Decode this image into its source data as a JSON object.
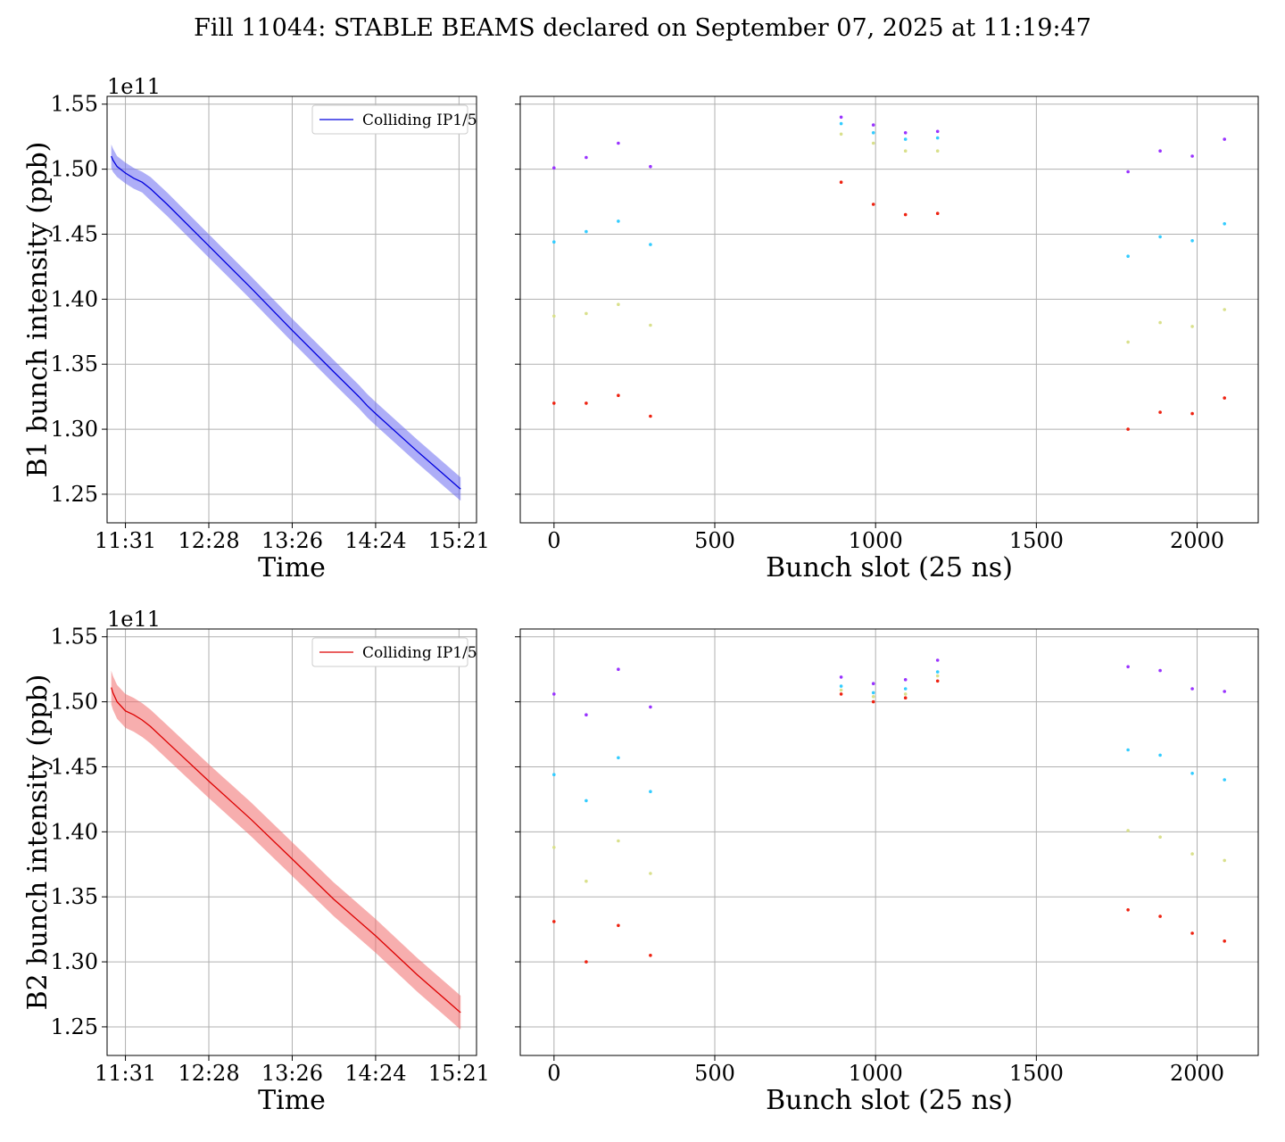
{
  "figure": {
    "title": "Fill 11044: STABLE BEAMS declared on September 07, 2025 at 11:19:47"
  },
  "chart_data": [
    {
      "id": "b1_time",
      "type": "line",
      "title": "",
      "xlabel": "Time",
      "ylabel": "B1 bunch intensity (ppb)",
      "y_offset_label": "1e11",
      "y_scale": 100000000000.0,
      "xticks": [
        "11:31",
        "12:28",
        "13:26",
        "14:24",
        "15:21"
      ],
      "xlim": [
        -0.22,
        4.21
      ],
      "ylim": [
        1.228,
        1.556
      ],
      "yticks": [
        1.25,
        1.3,
        1.35,
        1.4,
        1.45,
        1.5,
        1.55
      ],
      "grid": true,
      "legend": {
        "position": "upper right",
        "entries": [
          "Colliding IP1/5"
        ]
      },
      "line_color": "#0000dd",
      "band_color": "#6b6bf0",
      "series": [
        {
          "name": "Colliding IP1/5",
          "x": [
            -0.17,
            -0.15,
            -0.1,
            0.0,
            0.1,
            0.2,
            0.3,
            0.5,
            1.0,
            1.5,
            2.0,
            2.5,
            2.8,
            2.9,
            3.0,
            3.5,
            4.0,
            4.02
          ],
          "y": [
            1.51,
            1.507,
            1.502,
            1.497,
            1.493,
            1.49,
            1.485,
            1.473,
            1.441,
            1.409,
            1.376,
            1.344,
            1.325,
            1.318,
            1.312,
            1.283,
            1.255,
            1.254
          ],
          "band_upper": [
            1.519,
            1.516,
            1.51,
            1.505,
            1.501,
            1.498,
            1.494,
            1.482,
            1.45,
            1.418,
            1.385,
            1.353,
            1.334,
            1.327,
            1.321,
            1.292,
            1.264,
            1.263
          ],
          "band_lower": [
            1.501,
            1.498,
            1.494,
            1.489,
            1.485,
            1.482,
            1.476,
            1.464,
            1.432,
            1.4,
            1.367,
            1.335,
            1.316,
            1.309,
            1.303,
            1.274,
            1.246,
            1.245
          ]
        }
      ]
    },
    {
      "id": "b1_slot",
      "type": "scatter",
      "title": "",
      "xlabel": "Bunch slot (25 ns)",
      "ylabel": "",
      "xticks": [
        0,
        500,
        1000,
        1500,
        2000
      ],
      "xlim": [
        -105,
        2190
      ],
      "ylim": [
        1.228,
        1.556
      ],
      "grid": true,
      "colors": [
        "#9933ff",
        "#33ccff",
        "#d9e08c",
        "#ee2211"
      ],
      "series": [
        {
          "color_index": 0,
          "x": [
            0,
            100,
            200,
            300,
            893,
            993,
            1093,
            1193,
            1785,
            1885,
            1985,
            2085
          ],
          "y": [
            1.501,
            1.509,
            1.52,
            1.502,
            1.54,
            1.534,
            1.528,
            1.529,
            1.498,
            1.514,
            1.51,
            1.523
          ]
        },
        {
          "color_index": 1,
          "x": [
            0,
            100,
            200,
            300,
            893,
            993,
            1093,
            1193,
            1785,
            1885,
            1985,
            2085
          ],
          "y": [
            1.444,
            1.452,
            1.46,
            1.442,
            1.535,
            1.528,
            1.523,
            1.524,
            1.433,
            1.448,
            1.445,
            1.458
          ]
        },
        {
          "color_index": 2,
          "x": [
            0,
            100,
            200,
            300,
            893,
            993,
            1093,
            1193,
            1785,
            1885,
            1985,
            2085
          ],
          "y": [
            1.387,
            1.389,
            1.396,
            1.38,
            1.527,
            1.52,
            1.514,
            1.514,
            1.367,
            1.382,
            1.379,
            1.392
          ]
        },
        {
          "color_index": 3,
          "x": [
            0,
            100,
            200,
            300,
            893,
            993,
            1093,
            1193,
            1785,
            1885,
            1985,
            2085
          ],
          "y": [
            1.32,
            1.32,
            1.326,
            1.31,
            1.49,
            1.473,
            1.465,
            1.466,
            1.3,
            1.313,
            1.312,
            1.324
          ]
        }
      ]
    },
    {
      "id": "b2_time",
      "type": "line",
      "title": "",
      "xlabel": "Time",
      "ylabel": "B2 bunch intensity (ppb)",
      "y_offset_label": "1e11",
      "y_scale": 100000000000.0,
      "xticks": [
        "11:31",
        "12:28",
        "13:26",
        "14:24",
        "15:21"
      ],
      "xlim": [
        -0.22,
        4.21
      ],
      "ylim": [
        1.228,
        1.556
      ],
      "yticks": [
        1.25,
        1.3,
        1.35,
        1.4,
        1.45,
        1.5,
        1.55
      ],
      "grid": true,
      "legend": {
        "position": "upper right",
        "entries": [
          "Colliding IP1/5"
        ]
      },
      "line_color": "#dd0000",
      "band_color": "#f06b6b",
      "series": [
        {
          "name": "Colliding IP1/5",
          "x": [
            -0.17,
            -0.15,
            -0.1,
            0.0,
            0.1,
            0.2,
            0.3,
            0.5,
            1.0,
            1.5,
            2.0,
            2.5,
            3.0,
            3.5,
            4.0,
            4.02
          ],
          "y": [
            1.511,
            1.507,
            1.5,
            1.493,
            1.49,
            1.486,
            1.481,
            1.469,
            1.439,
            1.41,
            1.379,
            1.348,
            1.32,
            1.29,
            1.262,
            1.261
          ],
          "band_upper": [
            1.524,
            1.52,
            1.513,
            1.506,
            1.503,
            1.499,
            1.494,
            1.482,
            1.452,
            1.423,
            1.392,
            1.361,
            1.333,
            1.303,
            1.275,
            1.274
          ],
          "band_lower": [
            1.498,
            1.494,
            1.487,
            1.48,
            1.477,
            1.473,
            1.468,
            1.456,
            1.426,
            1.397,
            1.366,
            1.335,
            1.307,
            1.277,
            1.249,
            1.248
          ]
        }
      ]
    },
    {
      "id": "b2_slot",
      "type": "scatter",
      "title": "",
      "xlabel": "Bunch slot (25 ns)",
      "ylabel": "",
      "xticks": [
        0,
        500,
        1000,
        1500,
        2000
      ],
      "xlim": [
        -105,
        2190
      ],
      "ylim": [
        1.228,
        1.556
      ],
      "grid": true,
      "colors": [
        "#9933ff",
        "#33ccff",
        "#d9e08c",
        "#ee2211"
      ],
      "series": [
        {
          "color_index": 0,
          "x": [
            0,
            100,
            200,
            300,
            893,
            993,
            1093,
            1193,
            1785,
            1885,
            1985,
            2085
          ],
          "y": [
            1.506,
            1.49,
            1.525,
            1.496,
            1.519,
            1.514,
            1.517,
            1.532,
            1.527,
            1.524,
            1.51,
            1.508
          ]
        },
        {
          "color_index": 1,
          "x": [
            0,
            100,
            200,
            300,
            893,
            993,
            1093,
            1193,
            1785,
            1885,
            1985,
            2085
          ],
          "y": [
            1.444,
            1.424,
            1.457,
            1.431,
            1.512,
            1.507,
            1.51,
            1.523,
            1.463,
            1.459,
            1.445,
            1.44
          ]
        },
        {
          "color_index": 2,
          "x": [
            0,
            100,
            200,
            300,
            893,
            993,
            1093,
            1193,
            1785,
            1885,
            1985,
            2085
          ],
          "y": [
            1.388,
            1.362,
            1.393,
            1.368,
            1.509,
            1.504,
            1.506,
            1.52,
            1.401,
            1.396,
            1.383,
            1.378
          ]
        },
        {
          "color_index": 3,
          "x": [
            0,
            100,
            200,
            300,
            893,
            993,
            1093,
            1193,
            1785,
            1885,
            1985,
            2085
          ],
          "y": [
            1.331,
            1.3,
            1.328,
            1.305,
            1.506,
            1.5,
            1.503,
            1.516,
            1.34,
            1.335,
            1.322,
            1.316
          ]
        }
      ]
    }
  ]
}
